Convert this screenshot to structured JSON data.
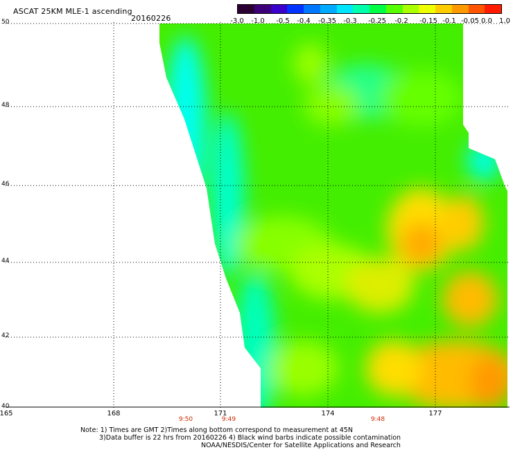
{
  "title": "ASCAT 25KM MLE-1 ascending",
  "date": "20160226",
  "colorbar": {
    "labels": [
      "-3.0",
      "-1.0",
      "-0.5",
      "-0.4",
      "-0.35",
      "-0.3",
      "-0.25",
      "-0.2",
      "-0.15",
      "-0.1",
      "-0.05",
      "0.0",
      "1.0"
    ],
    "colors": [
      "#2a0033",
      "#3d0078",
      "#3a00cc",
      "#0033ff",
      "#0077ff",
      "#00aaff",
      "#00e5ff",
      "#00ffaa",
      "#00ff44",
      "#55ff00",
      "#aaff00",
      "#eeff00",
      "#ffcc00",
      "#ff9900",
      "#ff5500",
      "#ff1a00"
    ]
  },
  "map": {
    "lat_labels": [
      "50",
      "48",
      "46",
      "44",
      "42",
      "40"
    ],
    "lon_labels": [
      "165",
      "168",
      "171",
      "174",
      "177"
    ],
    "pass_times": [
      "9:50",
      "9:49",
      "9:48"
    ],
    "grid_lines": true,
    "color_scale": {
      "dominant": "#44ee00",
      "cyan_edge": "#00ffee",
      "yellow": "#eeee00",
      "orange": "#ffaa00"
    }
  },
  "notes": {
    "line1": "Note: 1) Times are GMT 2)Times along bottom correspond to measurement at 45N",
    "line2": "3)Data buffer is 22 hrs from 20160226 4) Black wind barbs indicate possible contamination",
    "line3": "NOAA/NESDIS/Center for Satellite Applications and Research"
  }
}
